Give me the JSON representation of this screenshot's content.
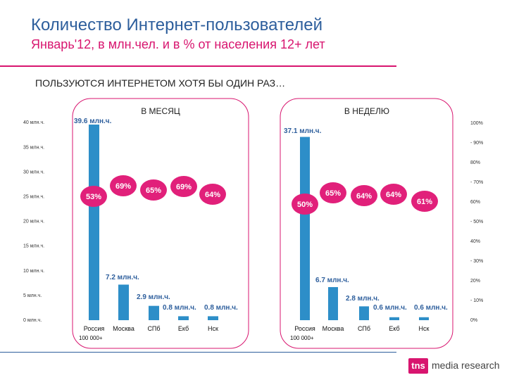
{
  "title": "Количество Интернет-пользователей",
  "subtitle": "Январь'12, в млн.чел. и в % от населения 12+ лет",
  "section_heading": "ПОЛЬЗУЮТСЯ ИНТЕРНЕТОМ ХОТЯ БЫ ОДИН РАЗ…",
  "logo": {
    "badge": "tns",
    "text": "media research"
  },
  "colors": {
    "bar": "#2d8ec8",
    "bubble": "#e1207a",
    "panel_border": "#d8156f",
    "label_blue": "#2d5e9c"
  },
  "chart_data": [
    {
      "type": "bar",
      "title": "В МЕСЯЦ",
      "categories": [
        "Россия",
        "Москва",
        "СПб",
        "Екб",
        "Нск"
      ],
      "category_note": "100 000+",
      "series": [
        {
          "values": [
            39.6,
            7.2,
            2.9,
            0.8,
            0.8
          ],
          "labels": [
            "39.6 млн.ч.",
            "7.2 млн.ч.",
            "2.9 млн.ч.",
            "0.8 млн.ч.",
            "0.8 млн.ч."
          ]
        },
        {
          "values": [
            53,
            69,
            65,
            69,
            64
          ],
          "labels": [
            "53%",
            "69%",
            "65%",
            "69%",
            "64%"
          ]
        }
      ],
      "ylim": [
        0,
        40
      ],
      "yticks": [
        "0 млн.ч.",
        "5 млн.ч.",
        "10 млн.ч.",
        "15 млн.ч.",
        "20 млн.ч.",
        "25 млн.ч.",
        "30 млн.ч.",
        "35 млн.ч.",
        "40 млн.ч."
      ]
    },
    {
      "type": "bar",
      "title": "В НЕДЕЛЮ",
      "categories": [
        "Россия",
        "Москва",
        "СПб",
        "Екб",
        "Нск"
      ],
      "category_note": "100 000+",
      "series": [
        {
          "values": [
            37.1,
            6.7,
            2.8,
            0.6,
            0.6
          ],
          "labels": [
            "37.1 млн.ч.",
            "6.7 млн.ч.",
            "2.8 млн.ч.",
            "0.6 млн.ч.",
            "0.6 млн.ч."
          ]
        },
        {
          "values": [
            50,
            65,
            64,
            64,
            61
          ],
          "labels": [
            "50%",
            "65%",
            "64%",
            "64%",
            "61%"
          ]
        }
      ],
      "ylim": [
        0,
        100
      ],
      "yticks": [
        "0%",
        "10%",
        "20%",
        "30%",
        "40%",
        "50%",
        "60%",
        "70%",
        "80%",
        "90%",
        "100%"
      ]
    }
  ]
}
